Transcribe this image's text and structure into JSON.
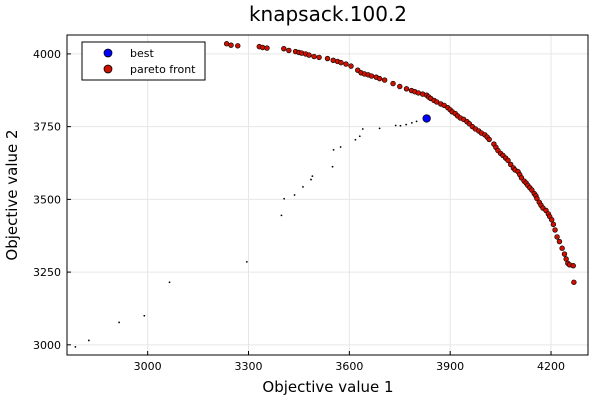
{
  "chart_data": {
    "type": "scatter",
    "title": "knapsack.100.2",
    "xlabel": "Objective value 1",
    "ylabel": "Objective value 2",
    "xlim": [
      2760,
      4310
    ],
    "ylim": [
      2965,
      4065
    ],
    "xticks": [
      3000,
      3300,
      3600,
      3900,
      4200
    ],
    "yticks": [
      3000,
      3250,
      3500,
      3750,
      4000
    ],
    "grid": true,
    "legend_position": "top-left",
    "series": [
      {
        "name": "best",
        "color": "#0000ff",
        "points": [
          [
            3830,
            3778
          ]
        ]
      },
      {
        "name": "pareto front",
        "color": "#cc1100",
        "points": [
          [
            3235,
            4035
          ],
          [
            3248,
            4030
          ],
          [
            3268,
            4028
          ],
          [
            3332,
            4025
          ],
          [
            3342,
            4022
          ],
          [
            3355,
            4020
          ],
          [
            3405,
            4018
          ],
          [
            3420,
            4012
          ],
          [
            3440,
            4008
          ],
          [
            3450,
            4005
          ],
          [
            3458,
            4003
          ],
          [
            3470,
            4000
          ],
          [
            3480,
            3996
          ],
          [
            3495,
            3991
          ],
          [
            3510,
            3988
          ],
          [
            3535,
            3984
          ],
          [
            3552,
            3978
          ],
          [
            3565,
            3974
          ],
          [
            3575,
            3970
          ],
          [
            3590,
            3965
          ],
          [
            3605,
            3958
          ],
          [
            3625,
            3944
          ],
          [
            3635,
            3935
          ],
          [
            3645,
            3931
          ],
          [
            3656,
            3928
          ],
          [
            3666,
            3924
          ],
          [
            3680,
            3920
          ],
          [
            3690,
            3915
          ],
          [
            3705,
            3910
          ],
          [
            3730,
            3898
          ],
          [
            3750,
            3888
          ],
          [
            3770,
            3880
          ],
          [
            3785,
            3874
          ],
          [
            3795,
            3870
          ],
          [
            3805,
            3866
          ],
          [
            3818,
            3862
          ],
          [
            3830,
            3858
          ],
          [
            3836,
            3852
          ],
          [
            3842,
            3847
          ],
          [
            3852,
            3840
          ],
          [
            3860,
            3835
          ],
          [
            3872,
            3828
          ],
          [
            3882,
            3823
          ],
          [
            3893,
            3815
          ],
          [
            3900,
            3808
          ],
          [
            3906,
            3801
          ],
          [
            3915,
            3795
          ],
          [
            3922,
            3787
          ],
          [
            3930,
            3780
          ],
          [
            3940,
            3775
          ],
          [
            3950,
            3767
          ],
          [
            3957,
            3760
          ],
          [
            3966,
            3750
          ],
          [
            3975,
            3742
          ],
          [
            3985,
            3735
          ],
          [
            3993,
            3728
          ],
          [
            4003,
            3722
          ],
          [
            4010,
            3714
          ],
          [
            4016,
            3706
          ],
          [
            4030,
            3690
          ],
          [
            4036,
            3679
          ],
          [
            4042,
            3668
          ],
          [
            4050,
            3658
          ],
          [
            4057,
            3651
          ],
          [
            4065,
            3642
          ],
          [
            4072,
            3634
          ],
          [
            4080,
            3620
          ],
          [
            4088,
            3608
          ],
          [
            4093,
            3601
          ],
          [
            4102,
            3595
          ],
          [
            4107,
            3585
          ],
          [
            4112,
            3574
          ],
          [
            4120,
            3563
          ],
          [
            4126,
            3556
          ],
          [
            4131,
            3548
          ],
          [
            4137,
            3540
          ],
          [
            4143,
            3532
          ],
          [
            4150,
            3520
          ],
          [
            4155,
            3512
          ],
          [
            4158,
            3503
          ],
          [
            4165,
            3490
          ],
          [
            4170,
            3480
          ],
          [
            4176,
            3470
          ],
          [
            4185,
            3462
          ],
          [
            4192,
            3450
          ],
          [
            4196,
            3441
          ],
          [
            4202,
            3430
          ],
          [
            4207,
            3414
          ],
          [
            4212,
            3395
          ],
          [
            4218,
            3371
          ],
          [
            4225,
            3355
          ],
          [
            4233,
            3332
          ],
          [
            4240,
            3312
          ],
          [
            4245,
            3295
          ],
          [
            4250,
            3280
          ],
          [
            4255,
            3275
          ],
          [
            4266,
            3272
          ],
          [
            4268,
            3215
          ]
        ]
      }
    ],
    "unlabeled_points": [
      [
        2785,
        2993
      ],
      [
        2825,
        3015
      ],
      [
        2915,
        3077
      ],
      [
        2990,
        3100
      ],
      [
        3065,
        3215
      ],
      [
        3295,
        3285
      ],
      [
        3398,
        3445
      ],
      [
        3406,
        3502
      ],
      [
        3437,
        3515
      ],
      [
        3462,
        3543
      ],
      [
        3486,
        3568
      ],
      [
        3490,
        3580
      ],
      [
        3550,
        3612
      ],
      [
        3553,
        3670
      ],
      [
        3574,
        3680
      ],
      [
        3618,
        3705
      ],
      [
        3631,
        3717
      ],
      [
        3640,
        3742
      ],
      [
        3690,
        3744
      ],
      [
        3738,
        3754
      ],
      [
        3752,
        3753
      ],
      [
        3769,
        3757
      ],
      [
        3786,
        3763
      ],
      [
        3800,
        3768
      ]
    ]
  }
}
